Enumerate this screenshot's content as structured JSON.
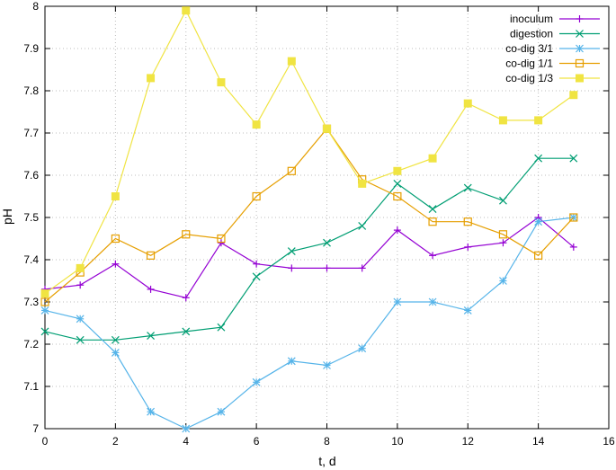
{
  "chart_data": {
    "type": "line",
    "xlabel": "t, d",
    "ylabel": "pH",
    "xlim": [
      0,
      16
    ],
    "ylim": [
      7,
      8
    ],
    "xticks": [
      0,
      2,
      4,
      6,
      8,
      10,
      12,
      14,
      16
    ],
    "yticks": [
      7,
      7.1,
      7.2,
      7.3,
      7.4,
      7.5,
      7.6,
      7.7,
      7.8,
      7.9,
      8
    ],
    "grid": true,
    "legend_position": "top-right",
    "x": [
      0,
      1,
      2,
      3,
      4,
      5,
      6,
      7,
      8,
      9,
      10,
      11,
      12,
      13,
      14,
      15
    ],
    "series": [
      {
        "name": "inoculum",
        "color": "#9400d3",
        "marker": "plus",
        "values": [
          7.33,
          7.34,
          7.39,
          7.33,
          7.31,
          7.44,
          7.39,
          7.38,
          7.38,
          7.38,
          7.47,
          7.41,
          7.43,
          7.44,
          7.5,
          7.43
        ]
      },
      {
        "name": "digestion",
        "color": "#009e73",
        "marker": "cross",
        "values": [
          7.23,
          7.21,
          7.21,
          7.22,
          7.23,
          7.24,
          7.36,
          7.42,
          7.44,
          7.48,
          7.58,
          7.52,
          7.57,
          7.54,
          7.64,
          7.64
        ]
      },
      {
        "name": "co-dig 3/1",
        "color": "#56b4e9",
        "marker": "asterisk",
        "values": [
          7.28,
          7.26,
          7.18,
          7.04,
          7.0,
          7.04,
          7.11,
          7.16,
          7.15,
          7.19,
          7.3,
          7.3,
          7.28,
          7.35,
          7.49,
          7.5
        ]
      },
      {
        "name": "co-dig 1/1",
        "color": "#e69f00",
        "marker": "open-square",
        "values": [
          7.3,
          7.37,
          7.45,
          7.41,
          7.46,
          7.45,
          7.55,
          7.61,
          7.71,
          7.59,
          7.55,
          7.49,
          7.49,
          7.46,
          7.41,
          7.5
        ]
      },
      {
        "name": "co-dig 1/3",
        "color": "#f0e442",
        "marker": "filled-square",
        "values": [
          7.32,
          7.38,
          7.55,
          7.83,
          7.99,
          7.82,
          7.72,
          7.87,
          7.71,
          7.58,
          7.61,
          7.64,
          7.77,
          7.73,
          7.73,
          7.79
        ]
      }
    ]
  }
}
